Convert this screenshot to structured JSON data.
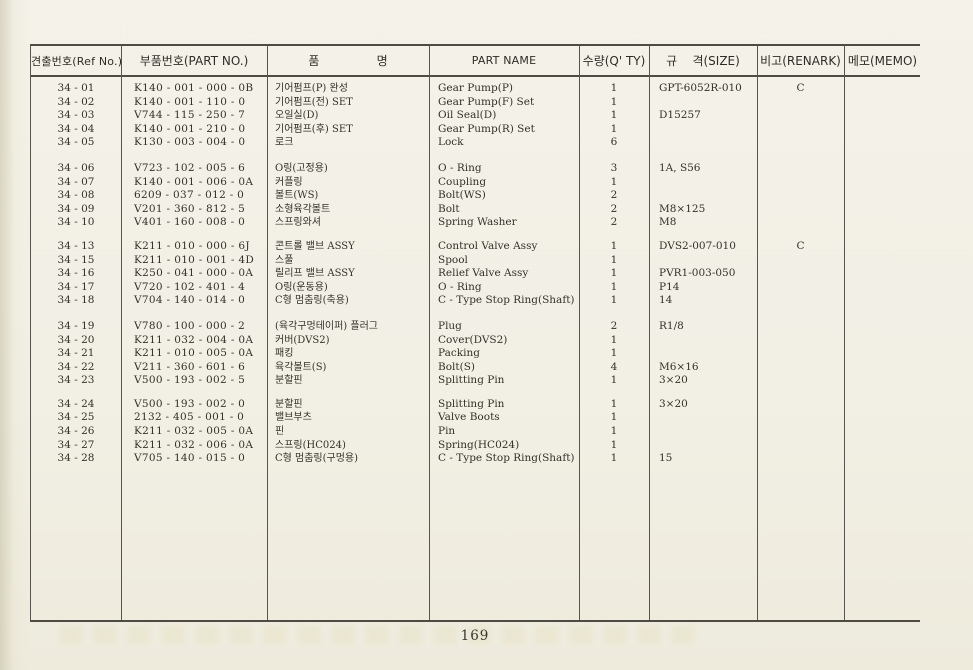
{
  "page": {
    "number": "169"
  },
  "table": {
    "headers": [
      "견출번호(Ref No.)",
      "부품번호(PART NO.)",
      "품               명",
      "PART NAME",
      "수량(Q' TY)",
      "규    격(SIZE)",
      "비고(RENARK)",
      "메모(MEMO)"
    ],
    "groups": [
      {
        "rows": [
          {
            "ref": "34 - 01",
            "part_no": "K140 - 001 - 000 - 0B",
            "name_kr": "기어펌프(P) 완성",
            "part_name": "Gear Pump(P)",
            "qty": "1",
            "size": "GPT-6052R-010",
            "remark": "C"
          },
          {
            "ref": "34 - 02",
            "part_no": "K140 - 001 - 110 - 0",
            "name_kr": "기어펌프(전) SET",
            "part_name": "Gear Pump(F) Set",
            "qty": "1",
            "size": "",
            "remark": ""
          },
          {
            "ref": "34 - 03",
            "part_no": "V744 - 115 - 250 - 7",
            "name_kr": "오일실(D)",
            "part_name": "Oil Seal(D)",
            "qty": "1",
            "size": "D15257",
            "remark": ""
          },
          {
            "ref": "34 - 04",
            "part_no": "K140 - 001 - 210 - 0",
            "name_kr": "기어펌프(후) SET",
            "part_name": "Gear Pump(R) Set",
            "qty": "1",
            "size": "",
            "remark": ""
          },
          {
            "ref": "34 - 05",
            "part_no": "K130 - 003 - 004 - 0",
            "name_kr": "로크",
            "part_name": "Lock",
            "qty": "6",
            "size": "",
            "remark": ""
          }
        ]
      },
      {
        "rows": [
          {
            "ref": "34 - 06",
            "part_no": "V723 - 102 - 005 - 6",
            "name_kr": "O링(고정용)",
            "part_name": "O - Ring",
            "qty": "3",
            "size": "1A, S56",
            "remark": ""
          },
          {
            "ref": "34 - 07",
            "part_no": "K140 - 001 - 006 - 0A",
            "name_kr": "커플링",
            "part_name": "Coupling",
            "qty": "1",
            "size": "",
            "remark": ""
          },
          {
            "ref": "34 - 08",
            "part_no": "6209 - 037 - 012 - 0",
            "name_kr": "볼트(WS)",
            "part_name": "Bolt(WS)",
            "qty": "2",
            "size": "",
            "remark": ""
          },
          {
            "ref": "34 - 09",
            "part_no": "V201 - 360 - 812 - 5",
            "name_kr": "소형육각볼트",
            "part_name": "Bolt",
            "qty": "2",
            "size": "M8×125",
            "remark": ""
          },
          {
            "ref": "34 - 10",
            "part_no": "V401 - 160 - 008 - 0",
            "name_kr": "스프링와셔",
            "part_name": "Spring Washer",
            "qty": "2",
            "size": "M8",
            "remark": ""
          }
        ]
      },
      {
        "rows": [
          {
            "ref": "34 - 13",
            "part_no": "K211 - 010 - 000 - 6J",
            "name_kr": "콘트롤 밸브 ASSY",
            "part_name": "Control Valve Assy",
            "qty": "1",
            "size": "DVS2-007-010",
            "remark": "C"
          },
          {
            "ref": "34 - 15",
            "part_no": "K211 - 010 - 001 - 4D",
            "name_kr": "스풀",
            "part_name": "Spool",
            "qty": "1",
            "size": "",
            "remark": ""
          },
          {
            "ref": "34 - 16",
            "part_no": "K250 - 041 - 000 - 0A",
            "name_kr": "릴리프 밸브 ASSY",
            "part_name": "Relief Valve Assy",
            "qty": "1",
            "size": "PVR1-003-050",
            "remark": ""
          },
          {
            "ref": "34 - 17",
            "part_no": "V720 - 102 - 401 - 4",
            "name_kr": "O링(운동용)",
            "part_name": "O - Ring",
            "qty": "1",
            "size": "P14",
            "remark": ""
          },
          {
            "ref": "34 - 18",
            "part_no": "V704 - 140 - 014 - 0",
            "name_kr": "C형 멈춤링(축용)",
            "part_name": "C - Type Stop Ring(Shaft)",
            "qty": "1",
            "size": "14",
            "remark": ""
          }
        ]
      },
      {
        "rows": [
          {
            "ref": "34 - 19",
            "part_no": "V780 - 100 - 000 - 2",
            "name_kr": "(육각구멍테이퍼) 플러그",
            "part_name": "Plug",
            "qty": "2",
            "size": "R1/8",
            "remark": ""
          },
          {
            "ref": "34 - 20",
            "part_no": "K211 - 032 - 004 - 0A",
            "name_kr": "커버(DVS2)",
            "part_name": "Cover(DVS2)",
            "qty": "1",
            "size": "",
            "remark": ""
          },
          {
            "ref": "34 - 21",
            "part_no": "K211 - 010 - 005 - 0A",
            "name_kr": "패킹",
            "part_name": "Packing",
            "qty": "1",
            "size": "",
            "remark": ""
          },
          {
            "ref": "34 - 22",
            "part_no": "V211 - 360 - 601 - 6",
            "name_kr": "육각볼트(S)",
            "part_name": "Bolt(S)",
            "qty": "4",
            "size": "M6×16",
            "remark": ""
          },
          {
            "ref": "34 - 23",
            "part_no": "V500 - 193 - 002 - 5",
            "name_kr": "분할핀",
            "part_name": "Splitting Pin",
            "qty": "1",
            "size": "3×20",
            "remark": ""
          }
        ]
      },
      {
        "rows": [
          {
            "ref": "34 - 24",
            "part_no": "V500 - 193 - 002 - 0",
            "name_kr": "분할핀",
            "part_name": "Splitting Pin",
            "qty": "1",
            "size": "3×20",
            "remark": ""
          },
          {
            "ref": "34 - 25",
            "part_no": "2132 - 405 - 001 - 0",
            "name_kr": "밸브부츠",
            "part_name": "Valve Boots",
            "qty": "1",
            "size": "",
            "remark": ""
          },
          {
            "ref": "34 - 26",
            "part_no": "K211 - 032 - 005 - 0A",
            "name_kr": "핀",
            "part_name": "Pin",
            "qty": "1",
            "size": "",
            "remark": ""
          },
          {
            "ref": "34 - 27",
            "part_no": "K211 - 032 - 006 - 0A",
            "name_kr": "스프링(HC024)",
            "part_name": "Spring(HC024)",
            "qty": "1",
            "size": "",
            "remark": ""
          },
          {
            "ref": "34 - 28",
            "part_no": "V705 - 140 - 015 - 0",
            "name_kr": "C형 멈춤링(구멍용)",
            "part_name": "C - Type Stop Ring(Shaft)",
            "qty": "1",
            "size": "15",
            "remark": ""
          }
        ]
      }
    ]
  }
}
